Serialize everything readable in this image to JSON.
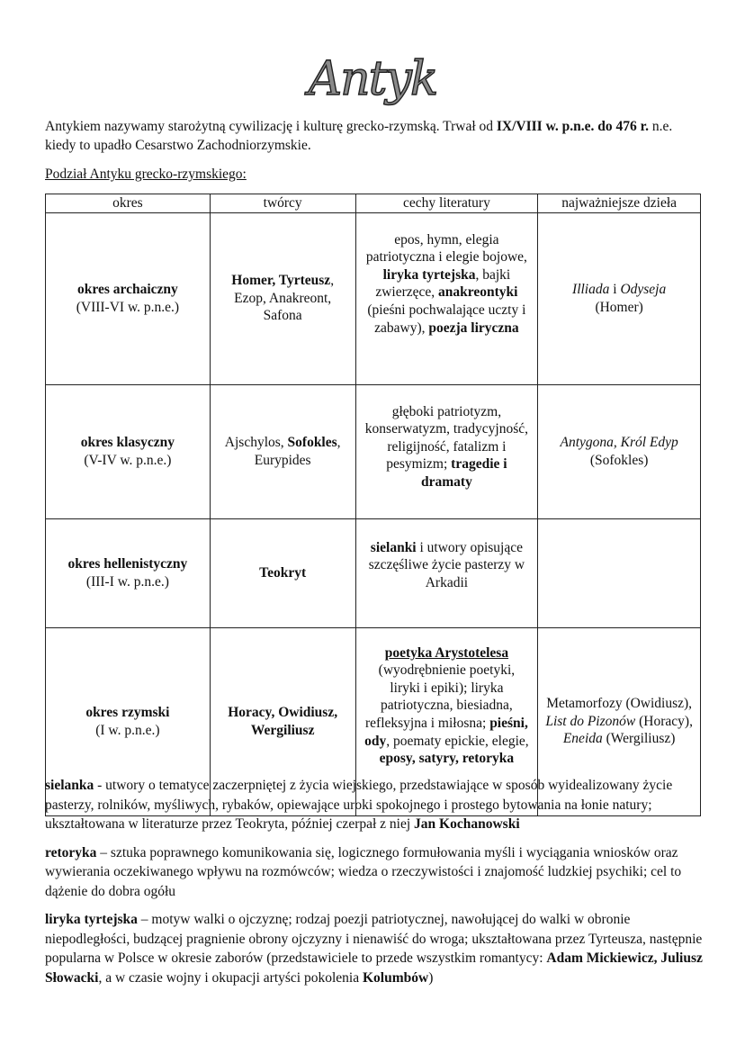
{
  "title": "Antyk",
  "intro": [
    [
      "Antykiem nazywamy starożytną cywilizację i kulturę grecko-rzymską. Trwał od ",
      ""
    ],
    [
      "IX/VIII w. p.n.e. do 476 r.",
      "b"
    ],
    [
      " n.e. kiedy to upadło Cesarstwo Zachodniorzymskie.",
      ""
    ]
  ],
  "subheading": "Podział Antyku grecko-rzymskiego:",
  "table": {
    "headers": [
      "okres",
      "twórcy",
      "cechy literatury",
      "najważniejsze dzieła"
    ],
    "rows": [
      {
        "period": [
          [
            "okres archaiczny",
            "b"
          ],
          [
            "\n(VIII-VI w. p.n.e.)",
            ""
          ]
        ],
        "authors": [
          [
            "Homer, Tyrteusz",
            "b"
          ],
          [
            ", Ezop, Anakreont, Safona",
            ""
          ]
        ],
        "features": [
          [
            "epos, hymn, elegia patriotyczna i elegie bojowe, ",
            ""
          ],
          [
            "liryka tyrtejska",
            "b"
          ],
          [
            ", bajki zwierzęce, ",
            ""
          ],
          [
            "anakreontyki",
            "b"
          ],
          [
            " (pieśni pochwalające uczty i zabawy), ",
            ""
          ],
          [
            "poezja liryczna",
            "b"
          ]
        ],
        "works": [
          [
            "Illiada",
            "i"
          ],
          [
            " i ",
            ""
          ],
          [
            "Odyseja",
            "i"
          ],
          [
            "\n(Homer)",
            ""
          ]
        ]
      },
      {
        "period": [
          [
            "okres klasyczny",
            "b"
          ],
          [
            "\n(V-IV w. p.n.e.)",
            ""
          ]
        ],
        "authors": [
          [
            "Ajschylos, ",
            ""
          ],
          [
            "Sofokles",
            "b"
          ],
          [
            ", Eurypides",
            ""
          ]
        ],
        "features": [
          [
            "głęboki patriotyzm, konserwatyzm, tradycyjność, religijność, fatalizm i pesymizm; ",
            ""
          ],
          [
            "tragedie i dramaty",
            "b"
          ]
        ],
        "works": [
          [
            "Antygona, Król Edyp",
            "i"
          ],
          [
            "\n(Sofokles)",
            ""
          ]
        ]
      },
      {
        "period": [
          [
            "okres hellenistyczny",
            "b"
          ],
          [
            "\n(III-I w. p.n.e.)",
            ""
          ]
        ],
        "authors": [
          [
            "Teokryt",
            "b"
          ]
        ],
        "features": [
          [
            "sielanki",
            "b"
          ],
          [
            " i utwory opisujące szczęśliwe życie pasterzy w Arkadii",
            ""
          ]
        ],
        "works": []
      },
      {
        "period": [
          [
            "okres rzymski",
            "b"
          ],
          [
            "\n(I w. p.n.e.)",
            ""
          ]
        ],
        "authors": [
          [
            "Horacy, Owidiusz, Wergiliusz",
            "b"
          ]
        ],
        "features": [
          [
            "poetyka Arystotelesa",
            "bu"
          ],
          [
            " (wyodrębnienie poetyki, liryki i epiki); liryka patriotyczna, biesiadna, refleksyjna i miłosna; ",
            ""
          ],
          [
            "pieśni, ody",
            "b"
          ],
          [
            ", poematy epickie, elegie, ",
            ""
          ],
          [
            "eposy, satyry, retoryka",
            "b"
          ]
        ],
        "works": [
          [
            "Metamorfozy (Owidiusz), ",
            ""
          ],
          [
            "List do Pizonów",
            "i"
          ],
          [
            " (Horacy), ",
            ""
          ],
          [
            "Eneida",
            "i"
          ],
          [
            " (Wergiliusz)",
            ""
          ]
        ]
      }
    ]
  },
  "definitions": [
    [
      [
        "sielanka",
        "b"
      ],
      [
        " - utwory o tematyce zaczerpniętej z życia wiejskiego, przedstawiające w sposób wyidealizowany życie pasterzy, rolników, myśliwych, rybaków, opiewające uroki spokojnego i prostego bytowania na łonie natury; ukształtowana w literaturze przez Teokryta, później czerpał z niej ",
        ""
      ],
      [
        "Jan Kochanowski",
        "b"
      ]
    ],
    [
      [
        "retoryka",
        "b"
      ],
      [
        " – sztuka poprawnego komunikowania się, logicznego formułowania myśli i wyciągania wniosków oraz wywierania oczekiwanego wpływu na rozmówców; wiedza o rzeczywistości i znajomość ludzkiej psychiki; cel to dążenie do dobra ogółu",
        ""
      ]
    ],
    [
      [
        "liryka tyrtejska",
        "b"
      ],
      [
        " – motyw walki o ojczyznę; rodzaj poezji patriotycznej, nawołującej do walki w obronie niepodległości, budzącej pragnienie obrony ojczyzny i nienawiść do wroga; ukształtowana przez Tyrteusza, następnie popularna w Polsce w okresie zaborów (przedstawiciele to przede wszystkim romantycy: ",
        ""
      ],
      [
        "Adam Mickiewicz, Juliusz Słowacki",
        "b"
      ],
      [
        ", a w czasie wojny i okupacji artyści pokolenia ",
        ""
      ],
      [
        "Kolumbów",
        "b"
      ],
      [
        ")",
        ""
      ]
    ]
  ]
}
